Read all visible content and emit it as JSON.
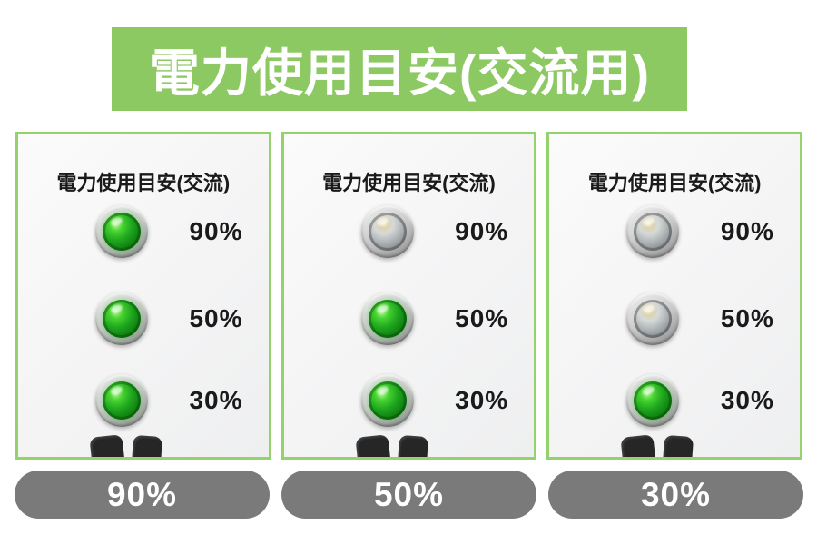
{
  "header": {
    "title": "電力使用目安(交流用)"
  },
  "colors": {
    "accent": "#8dc963",
    "panel_border": "#94d26c",
    "badge_bg": "#7a7a7a",
    "text": "#1a1a1a",
    "led_on": "#1ea51e",
    "led_off": "#aab0b2"
  },
  "icons": {
    "led_lit": "green-led-indicator",
    "led_unlit": "gray-led-indicator",
    "prongs": "plug-prongs"
  },
  "panels": [
    {
      "title": "電力使用目安(交流)",
      "badge": "90%",
      "leds": [
        {
          "label": "90%",
          "lit": true
        },
        {
          "label": "50%",
          "lit": true
        },
        {
          "label": "30%",
          "lit": true
        }
      ]
    },
    {
      "title": "電力使用目安(交流)",
      "badge": "50%",
      "leds": [
        {
          "label": "90%",
          "lit": false
        },
        {
          "label": "50%",
          "lit": true
        },
        {
          "label": "30%",
          "lit": true
        }
      ]
    },
    {
      "title": "電力使用目安(交流)",
      "badge": "30%",
      "leds": [
        {
          "label": "90%",
          "lit": false
        },
        {
          "label": "50%",
          "lit": false
        },
        {
          "label": "30%",
          "lit": true
        }
      ]
    }
  ]
}
